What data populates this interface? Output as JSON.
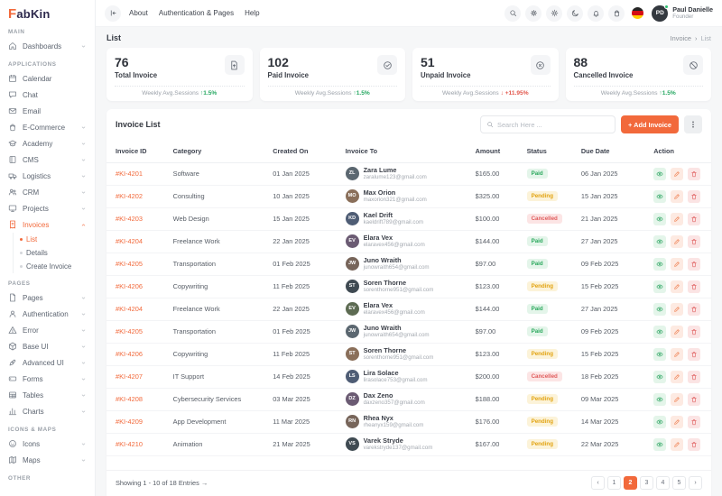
{
  "brand": {
    "mark": "F",
    "rest": "abKin"
  },
  "colors": {
    "accent": "#f2693b",
    "delta_up": "#27a862",
    "delta_down": "#e2574c",
    "avatar_palette": [
      "#5b6770",
      "#8a6f5a",
      "#4f5d75",
      "#6b5b73",
      "#77655a",
      "#3f4a52",
      "#5d6b52"
    ]
  },
  "topbar": {
    "collapse_icon": "collapse",
    "menu": [
      "About",
      "Authentication & Pages",
      "Help"
    ],
    "icons": [
      "search",
      "gear",
      "sun",
      "moon",
      "bell",
      "bag"
    ],
    "flag": "germany",
    "user": {
      "name": "Paul Danielle",
      "role": "Founder",
      "initials": "PD",
      "status": "online"
    }
  },
  "sidebar": {
    "sections": [
      {
        "title": "MAIN",
        "items": [
          {
            "label": "Dashboards",
            "icon": "home",
            "chevron": "down"
          }
        ]
      },
      {
        "title": "APPLICATIONS",
        "items": [
          {
            "label": "Calendar",
            "icon": "calendar"
          },
          {
            "label": "Chat",
            "icon": "chat"
          },
          {
            "label": "Email",
            "icon": "email"
          },
          {
            "label": "E-Commerce",
            "icon": "cart",
            "chevron": "down"
          },
          {
            "label": "Academy",
            "icon": "academy",
            "chevron": "down"
          },
          {
            "label": "CMS",
            "icon": "cms",
            "chevron": "down"
          },
          {
            "label": "Logistics",
            "icon": "truck",
            "chevron": "down"
          },
          {
            "label": "CRM",
            "icon": "users",
            "chevron": "down"
          },
          {
            "label": "Projects",
            "icon": "monitor",
            "chevron": "down"
          },
          {
            "label": "Invoices",
            "icon": "invoice",
            "chevron": "up",
            "active": true,
            "children": [
              {
                "label": "List",
                "active": true
              },
              {
                "label": "Details"
              },
              {
                "label": "Create Invoice"
              }
            ]
          }
        ]
      },
      {
        "title": "PAGES",
        "items": [
          {
            "label": "Pages",
            "icon": "pages",
            "chevron": "down"
          },
          {
            "label": "Authentication",
            "icon": "auth",
            "chevron": "down"
          },
          {
            "label": "Error",
            "icon": "error",
            "chevron": "down"
          },
          {
            "label": "Base UI",
            "icon": "base",
            "chevron": "down"
          },
          {
            "label": "Advanced UI",
            "icon": "advanced",
            "chevron": "down"
          },
          {
            "label": "Forms",
            "icon": "forms",
            "chevron": "down"
          },
          {
            "label": "Tables",
            "icon": "table",
            "chevron": "down"
          },
          {
            "label": "Charts",
            "icon": "chart",
            "chevron": "down"
          }
        ]
      },
      {
        "title": "ICONS & MAPS",
        "items": [
          {
            "label": "Icons",
            "icon": "icons",
            "chevron": "down"
          },
          {
            "label": "Maps",
            "icon": "maps",
            "chevron": "down"
          }
        ]
      },
      {
        "title": "OTHER",
        "items": []
      }
    ]
  },
  "breadcrumb": {
    "title": "List",
    "path": [
      "Invoice",
      "List"
    ],
    "separator": "›"
  },
  "cards": [
    {
      "value": "76",
      "label": "Total Invoice",
      "icon": "file-up",
      "footer_label": "Weekly Avg.Sessions",
      "delta": "↑1.5%",
      "delta_dir": "up"
    },
    {
      "value": "102",
      "label": "Paid Invoice",
      "icon": "check-c",
      "footer_label": "Weekly Avg.Sessions",
      "delta": "↑1.5%",
      "delta_dir": "up"
    },
    {
      "value": "51",
      "label": "Unpaid Invoice",
      "icon": "x-c",
      "footer_label": "Weekly Avg.Sessions",
      "delta": "↓ +11.95%",
      "delta_dir": "down"
    },
    {
      "value": "88",
      "label": "Cancelled Invoice",
      "icon": "ban",
      "footer_label": "Weekly Avg.Sessions",
      "delta": "↑1.5%",
      "delta_dir": "up"
    }
  ],
  "panel": {
    "title": "Invoice List",
    "search_placeholder": "Search Here ...",
    "add_button": "+ Add Invoice"
  },
  "table": {
    "columns": [
      "Invoice ID",
      "Category",
      "Created On",
      "Invoice To",
      "Amount",
      "Status",
      "Due Date",
      "Action"
    ],
    "status_styles": {
      "Paid": {
        "bg": "#e4f5ea",
        "fg": "#2aa85c"
      },
      "Pending": {
        "bg": "#fcf3d9",
        "fg": "#e2a311"
      },
      "Cancelled": {
        "bg": "#fce5e5",
        "fg": "#e05c5c"
      }
    },
    "rows": [
      {
        "id": "#KI-4201",
        "category": "Software",
        "created": "01 Jan 2025",
        "name": "Zara Lume",
        "email": "zaralume123@gmail.com",
        "amount": "$165.00",
        "status": "Paid",
        "due": "06 Jan 2025"
      },
      {
        "id": "#KI-4202",
        "category": "Consulting",
        "created": "10 Jan 2025",
        "name": "Max Orion",
        "email": "maxorion321@gmail.com",
        "amount": "$325.00",
        "status": "Pending",
        "due": "15 Jan 2025"
      },
      {
        "id": "#KI-4203",
        "category": "Web Design",
        "created": "15 Jan 2025",
        "name": "Kael Drift",
        "email": "kaeldrift789@gmail.com",
        "amount": "$100.00",
        "status": "Cancelled",
        "due": "21 Jan 2025"
      },
      {
        "id": "#KI-4204",
        "category": "Freelance Work",
        "created": "22 Jan 2025",
        "name": "Elara Vex",
        "email": "elaravex456@gmail.com",
        "amount": "$144.00",
        "status": "Paid",
        "due": "27 Jan 2025"
      },
      {
        "id": "#KI-4205",
        "category": "Transportation",
        "created": "01 Feb 2025",
        "name": "Juno Wraith",
        "email": "junowraith654@gmail.com",
        "amount": "$97.00",
        "status": "Paid",
        "due": "09 Feb 2025"
      },
      {
        "id": "#KI-4206",
        "category": "Copywriting",
        "created": "11 Feb 2025",
        "name": "Soren Thorne",
        "email": "sorenthorne951@gmail.com",
        "amount": "$123.00",
        "status": "Pending",
        "due": "15 Feb 2025"
      },
      {
        "id": "#KI-4204",
        "category": "Freelance Work",
        "created": "22 Jan 2025",
        "name": "Elara Vex",
        "email": "elaravex456@gmail.com",
        "amount": "$144.00",
        "status": "Paid",
        "due": "27 Jan 2025"
      },
      {
        "id": "#KI-4205",
        "category": "Transportation",
        "created": "01 Feb 2025",
        "name": "Juno Wraith",
        "email": "junowraith654@gmail.com",
        "amount": "$97.00",
        "status": "Paid",
        "due": "09 Feb 2025"
      },
      {
        "id": "#KI-4206",
        "category": "Copywriting",
        "created": "11 Feb 2025",
        "name": "Soren Thorne",
        "email": "sorenthorne951@gmail.com",
        "amount": "$123.00",
        "status": "Pending",
        "due": "15 Feb 2025"
      },
      {
        "id": "#KI-4207",
        "category": "IT Support",
        "created": "14 Feb 2025",
        "name": "Lira Solace",
        "email": "lirasolace753@gmail.com",
        "amount": "$200.00",
        "status": "Cancelled",
        "due": "18 Feb 2025"
      },
      {
        "id": "#KI-4208",
        "category": "Cybersecurity Services",
        "created": "03 Mar 2025",
        "name": "Dax Zeno",
        "email": "daxzeno357@gmail.com",
        "amount": "$188.00",
        "status": "Pending",
        "due": "09 Mar 2025"
      },
      {
        "id": "#KI-4209",
        "category": "App Development",
        "created": "11 Mar 2025",
        "name": "Rhea Nyx",
        "email": "rheanyx159@gmail.com",
        "amount": "$176.00",
        "status": "Pending",
        "due": "14 Mar 2025"
      },
      {
        "id": "#KI-4210",
        "category": "Animation",
        "created": "21 Mar 2025",
        "name": "Varek Stryde",
        "email": "varekstryde137@gmail.com",
        "amount": "$167.00",
        "status": "Pending",
        "due": "22 Mar 2025"
      }
    ]
  },
  "footer": {
    "showing": "Showing 1 - 10 of 18 Entries →"
  },
  "pagination": {
    "prev": "‹",
    "next": "›",
    "pages": [
      "1",
      "2",
      "3",
      "4",
      "5"
    ],
    "active": "2"
  }
}
